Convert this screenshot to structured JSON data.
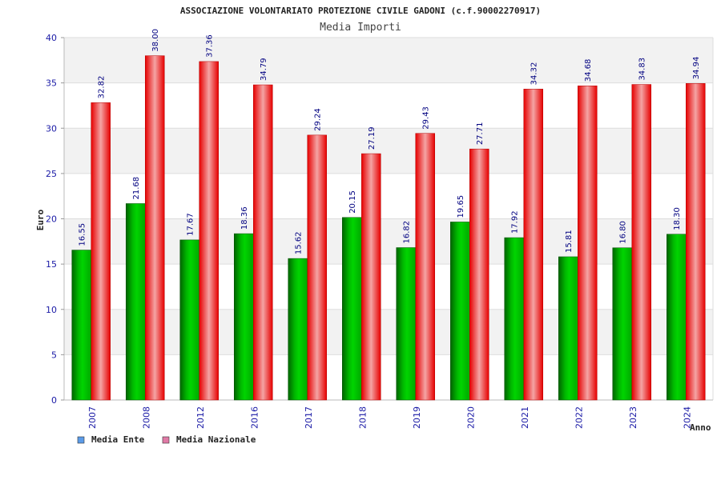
{
  "chart_data": {
    "type": "bar",
    "title": "ASSOCIAZIONE VOLONTARIATO PROTEZIONE CIVILE GADONI (c.f.90002270917)",
    "subtitle": "Media Importi",
    "xlabel": "Anno",
    "ylabel": "Euro",
    "ylim": [
      0,
      40
    ],
    "yticks": [
      0,
      5,
      10,
      15,
      20,
      25,
      30,
      35,
      40
    ],
    "categories": [
      "2007",
      "2008",
      "2012",
      "2016",
      "2017",
      "2018",
      "2019",
      "2020",
      "2021",
      "2022",
      "2023",
      "2024"
    ],
    "series": [
      {
        "name": "Media Ente",
        "legend_color": "#5b9be8",
        "values": [
          16.55,
          21.68,
          17.67,
          18.36,
          15.62,
          20.15,
          16.82,
          19.65,
          17.92,
          15.81,
          16.8,
          18.3
        ],
        "value_labels": [
          "16.55",
          "21.68",
          "17.67",
          "18.36",
          "15.62",
          "20.15",
          "16.82",
          "19.65",
          "17.92",
          "15.81",
          "16.80",
          "18.30"
        ]
      },
      {
        "name": "Media Nazionale",
        "legend_color": "#e07aa6",
        "values": [
          32.82,
          38.0,
          37.36,
          34.79,
          29.24,
          27.19,
          29.43,
          27.71,
          34.32,
          34.68,
          34.83,
          34.94
        ],
        "value_labels": [
          "32.82",
          "38.00",
          "37.36",
          "34.79",
          "29.24",
          "27.19",
          "29.43",
          "27.71",
          "34.32",
          "34.68",
          "34.83",
          "34.94"
        ]
      }
    ],
    "grid": true,
    "legend_position": "bottom-left"
  }
}
